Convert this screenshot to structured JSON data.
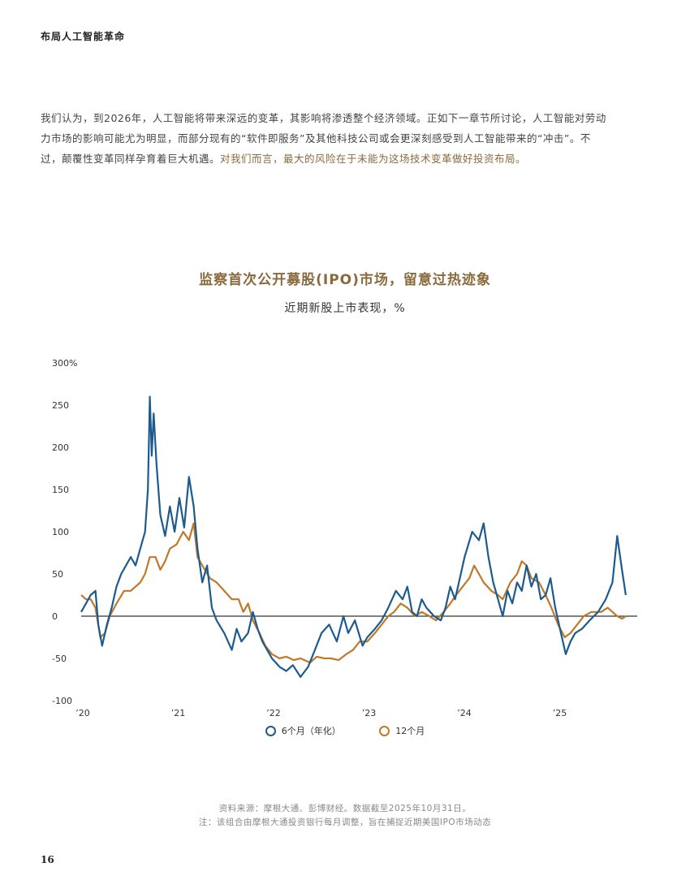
{
  "header": {
    "title": "布局人工智能革命"
  },
  "intro": {
    "text": "我们认为，到2026年，人工智能将带来深远的变革，其影响将渗透整个经济领域。正如下一章节所讨论，人工智能对劳动力市场的影响可能尤为明显，而部分现有的“软件即服务”及其他科技公司或会更深刻感受到人工智能带来的“冲击”。不过，颠覆性变革同样孕育着巨大机遇。",
    "highlight": "对我们而言，最大的风险在于未能为这场技术变革做好投资布局。"
  },
  "chart_data": {
    "type": "line",
    "title": "监察首次公开募股(IPO)市场，留意过热迹象",
    "subtitle": "近期新股上市表现，%",
    "ylim": [
      -100,
      300
    ],
    "yticks": [
      "300%",
      "250",
      "200",
      "150",
      "100",
      "50",
      "0",
      "-50",
      "-100"
    ],
    "xticks": [
      "’20",
      "’21",
      "’22",
      "’23",
      "’24",
      "’25"
    ],
    "x_start": 2020.0,
    "x_end": 2025.83,
    "colors": {
      "six_month": "#1d5b8f",
      "twelve_month": "#c0782a"
    },
    "series": [
      {
        "name": "6个月（年化）",
        "points": [
          [
            2020.0,
            5
          ],
          [
            2020.05,
            15
          ],
          [
            2020.1,
            25
          ],
          [
            2020.15,
            30
          ],
          [
            2020.18,
            -10
          ],
          [
            2020.22,
            -35
          ],
          [
            2020.27,
            -10
          ],
          [
            2020.32,
            10
          ],
          [
            2020.37,
            35
          ],
          [
            2020.42,
            50
          ],
          [
            2020.47,
            60
          ],
          [
            2020.52,
            70
          ],
          [
            2020.57,
            60
          ],
          [
            2020.62,
            80
          ],
          [
            2020.67,
            100
          ],
          [
            2020.7,
            150
          ],
          [
            2020.72,
            260
          ],
          [
            2020.74,
            190
          ],
          [
            2020.76,
            240
          ],
          [
            2020.79,
            180
          ],
          [
            2020.83,
            120
          ],
          [
            2020.88,
            95
          ],
          [
            2020.93,
            130
          ],
          [
            2020.98,
            100
          ],
          [
            2021.03,
            140
          ],
          [
            2021.08,
            105
          ],
          [
            2021.13,
            165
          ],
          [
            2021.18,
            130
          ],
          [
            2021.22,
            80
          ],
          [
            2021.27,
            40
          ],
          [
            2021.32,
            60
          ],
          [
            2021.37,
            10
          ],
          [
            2021.42,
            -5
          ],
          [
            2021.5,
            -20
          ],
          [
            2021.58,
            -40
          ],
          [
            2021.63,
            -15
          ],
          [
            2021.68,
            -30
          ],
          [
            2021.75,
            -20
          ],
          [
            2021.8,
            5
          ],
          [
            2021.85,
            -15
          ],
          [
            2021.9,
            -30
          ],
          [
            2021.95,
            -40
          ],
          [
            2022.0,
            -50
          ],
          [
            2022.08,
            -60
          ],
          [
            2022.15,
            -65
          ],
          [
            2022.22,
            -58
          ],
          [
            2022.3,
            -72
          ],
          [
            2022.38,
            -60
          ],
          [
            2022.45,
            -40
          ],
          [
            2022.52,
            -20
          ],
          [
            2022.6,
            -10
          ],
          [
            2022.68,
            -30
          ],
          [
            2022.75,
            0
          ],
          [
            2022.8,
            -20
          ],
          [
            2022.87,
            -5
          ],
          [
            2022.95,
            -35
          ],
          [
            2023.0,
            -25
          ],
          [
            2023.08,
            -15
          ],
          [
            2023.15,
            -5
          ],
          [
            2023.22,
            10
          ],
          [
            2023.3,
            30
          ],
          [
            2023.37,
            20
          ],
          [
            2023.42,
            35
          ],
          [
            2023.47,
            5
          ],
          [
            2023.52,
            0
          ],
          [
            2023.57,
            20
          ],
          [
            2023.62,
            10
          ],
          [
            2023.7,
            0
          ],
          [
            2023.77,
            -5
          ],
          [
            2023.82,
            10
          ],
          [
            2023.87,
            35
          ],
          [
            2023.92,
            20
          ],
          [
            2023.97,
            45
          ],
          [
            2024.02,
            70
          ],
          [
            2024.1,
            100
          ],
          [
            2024.17,
            90
          ],
          [
            2024.22,
            110
          ],
          [
            2024.27,
            70
          ],
          [
            2024.32,
            40
          ],
          [
            2024.37,
            20
          ],
          [
            2024.42,
            0
          ],
          [
            2024.47,
            30
          ],
          [
            2024.52,
            15
          ],
          [
            2024.57,
            40
          ],
          [
            2024.62,
            30
          ],
          [
            2024.67,
            60
          ],
          [
            2024.72,
            35
          ],
          [
            2024.77,
            50
          ],
          [
            2024.82,
            20
          ],
          [
            2024.87,
            25
          ],
          [
            2024.92,
            45
          ],
          [
            2024.97,
            10
          ],
          [
            2025.03,
            -20
          ],
          [
            2025.08,
            -45
          ],
          [
            2025.13,
            -30
          ],
          [
            2025.18,
            -20
          ],
          [
            2025.25,
            -15
          ],
          [
            2025.33,
            -5
          ],
          [
            2025.42,
            5
          ],
          [
            2025.5,
            20
          ],
          [
            2025.57,
            40
          ],
          [
            2025.62,
            95
          ],
          [
            2025.67,
            55
          ],
          [
            2025.71,
            25
          ]
        ]
      },
      {
        "name": "12个月",
        "points": [
          [
            2020.0,
            25
          ],
          [
            2020.05,
            20
          ],
          [
            2020.1,
            20
          ],
          [
            2020.15,
            10
          ],
          [
            2020.2,
            -25
          ],
          [
            2020.25,
            -20
          ],
          [
            2020.3,
            0
          ],
          [
            2020.37,
            15
          ],
          [
            2020.45,
            30
          ],
          [
            2020.52,
            30
          ],
          [
            2020.57,
            35
          ],
          [
            2020.62,
            40
          ],
          [
            2020.67,
            50
          ],
          [
            2020.72,
            70
          ],
          [
            2020.78,
            70
          ],
          [
            2020.83,
            55
          ],
          [
            2020.88,
            65
          ],
          [
            2020.93,
            80
          ],
          [
            2021.0,
            85
          ],
          [
            2021.07,
            100
          ],
          [
            2021.13,
            90
          ],
          [
            2021.18,
            110
          ],
          [
            2021.22,
            70
          ],
          [
            2021.27,
            60
          ],
          [
            2021.35,
            45
          ],
          [
            2021.42,
            40
          ],
          [
            2021.5,
            30
          ],
          [
            2021.58,
            20
          ],
          [
            2021.65,
            20
          ],
          [
            2021.7,
            5
          ],
          [
            2021.75,
            15
          ],
          [
            2021.8,
            -5
          ],
          [
            2021.87,
            -20
          ],
          [
            2021.93,
            -35
          ],
          [
            2022.0,
            -45
          ],
          [
            2022.08,
            -50
          ],
          [
            2022.15,
            -48
          ],
          [
            2022.23,
            -52
          ],
          [
            2022.3,
            -50
          ],
          [
            2022.4,
            -55
          ],
          [
            2022.47,
            -48
          ],
          [
            2022.55,
            -50
          ],
          [
            2022.62,
            -50
          ],
          [
            2022.7,
            -52
          ],
          [
            2022.78,
            -45
          ],
          [
            2022.85,
            -40
          ],
          [
            2022.92,
            -30
          ],
          [
            2023.0,
            -30
          ],
          [
            2023.08,
            -20
          ],
          [
            2023.15,
            -10
          ],
          [
            2023.22,
            0
          ],
          [
            2023.28,
            5
          ],
          [
            2023.35,
            15
          ],
          [
            2023.42,
            10
          ],
          [
            2023.5,
            0
          ],
          [
            2023.57,
            5
          ],
          [
            2023.65,
            0
          ],
          [
            2023.72,
            -5
          ],
          [
            2023.8,
            5
          ],
          [
            2023.87,
            15
          ],
          [
            2023.93,
            25
          ],
          [
            2024.0,
            35
          ],
          [
            2024.07,
            45
          ],
          [
            2024.12,
            60
          ],
          [
            2024.17,
            50
          ],
          [
            2024.22,
            40
          ],
          [
            2024.3,
            30
          ],
          [
            2024.37,
            25
          ],
          [
            2024.42,
            20
          ],
          [
            2024.5,
            40
          ],
          [
            2024.57,
            50
          ],
          [
            2024.62,
            65
          ],
          [
            2024.67,
            60
          ],
          [
            2024.72,
            45
          ],
          [
            2024.8,
            40
          ],
          [
            2024.87,
            25
          ],
          [
            2024.93,
            10
          ],
          [
            2025.0,
            -10
          ],
          [
            2025.07,
            -25
          ],
          [
            2025.13,
            -20
          ],
          [
            2025.2,
            -10
          ],
          [
            2025.27,
            0
          ],
          [
            2025.35,
            5
          ],
          [
            2025.45,
            5
          ],
          [
            2025.52,
            10
          ],
          [
            2025.57,
            5
          ],
          [
            2025.62,
            0
          ],
          [
            2025.67,
            -3
          ],
          [
            2025.71,
            0
          ]
        ]
      }
    ]
  },
  "source": {
    "line1": "资料来源：摩根大通、彭博财经。数据截至2025年10月31日。",
    "line2": "注：该组合由摩根大通投资银行每月调整，旨在捕捉近期美国IPO市场动态"
  },
  "page": {
    "number": "16"
  }
}
